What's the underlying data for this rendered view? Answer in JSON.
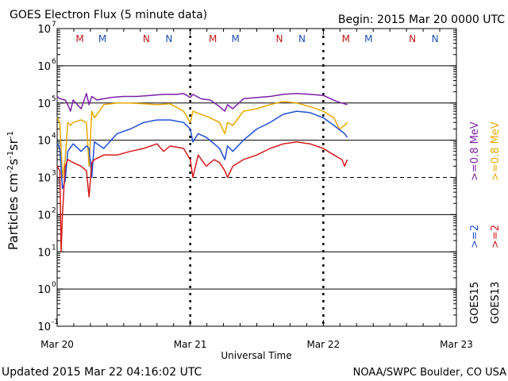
{
  "header": {
    "title": "GOES Electron Flux (5 minute data)",
    "begin": "Begin: 2015 Mar 20 0000 UTC"
  },
  "footer": {
    "updated": "Updated 2015 Mar 22 04:16:02 UTC",
    "credit": "NOAA/SWPC Boulder, CO USA"
  },
  "colors": {
    "goes15_08": "#7a1fa8",
    "goes13_08": "#e8a800",
    "goes15_2": "#1f4fd6",
    "goes13_2": "#d61a1a",
    "marker_M": "#c01818",
    "marker_M_blue": "#1f4fb0",
    "marker_N": "#c01818",
    "marker_N_blue": "#1f4fb0"
  },
  "chart_data": {
    "type": "line",
    "title": "GOES Electron Flux (5 minute data)",
    "xlabel": "Universal Time",
    "ylabel": "Particles cm⁻²s⁻¹sr⁻¹",
    "yscale": "log",
    "ylim": [
      0.1,
      10000000
    ],
    "xlim_days": [
      0,
      3
    ],
    "x_ticks": [
      {
        "day": 0,
        "label": "Mar 20"
      },
      {
        "day": 1,
        "label": "Mar 21"
      },
      {
        "day": 2,
        "label": "Mar 22"
      },
      {
        "day": 3,
        "label": "Mar 23"
      }
    ],
    "y_ticks": [
      {
        "exp": -1,
        "label": "10"
      },
      {
        "exp": 0,
        "label": "10"
      },
      {
        "exp": 1,
        "label": "10"
      },
      {
        "exp": 2,
        "label": "10"
      },
      {
        "exp": 3,
        "label": "10"
      },
      {
        "exp": 4,
        "label": "10"
      },
      {
        "exp": 5,
        "label": "10"
      },
      {
        "exp": 6,
        "label": "10"
      },
      {
        "exp": 7,
        "label": "10"
      }
    ],
    "threshold": 1000,
    "markers": [
      {
        "day": 0.17,
        "text": "M",
        "sat": "13"
      },
      {
        "day": 0.34,
        "text": "M",
        "sat": "15"
      },
      {
        "day": 0.67,
        "text": "N",
        "sat": "13"
      },
      {
        "day": 0.84,
        "text": "N",
        "sat": "15"
      },
      {
        "day": 1.17,
        "text": "M",
        "sat": "13"
      },
      {
        "day": 1.34,
        "text": "M",
        "sat": "15"
      },
      {
        "day": 1.67,
        "text": "N",
        "sat": "13"
      },
      {
        "day": 1.84,
        "text": "N",
        "sat": "15"
      },
      {
        "day": 2.17,
        "text": "M",
        "sat": "13"
      },
      {
        "day": 2.34,
        "text": "M",
        "sat": "15"
      },
      {
        "day": 2.67,
        "text": "N",
        "sat": "13"
      },
      {
        "day": 2.84,
        "text": "N",
        "sat": "15"
      }
    ],
    "legend": {
      "sat_labels": [
        "GOES15",
        "GOES13"
      ],
      "items": [
        {
          "text": ">=0.8  MeV",
          "color": "#7a1fa8"
        },
        {
          "text": ">=0.8  MeV",
          "color": "#e8a800"
        },
        {
          "text": ">=2",
          "color": "#1f4fd6"
        },
        {
          "text": ">=2",
          "color": "#d61a1a"
        }
      ]
    },
    "series": [
      {
        "name": "GOES15 >=0.8 MeV",
        "color": "#7a1fa8",
        "x": [
          0,
          0.02,
          0.06,
          0.08,
          0.1,
          0.12,
          0.18,
          0.22,
          0.24,
          0.26,
          0.3,
          0.4,
          0.5,
          0.6,
          0.7,
          0.8,
          0.9,
          0.95,
          1.0,
          1.02,
          1.08,
          1.15,
          1.22,
          1.26,
          1.28,
          1.32,
          1.4,
          1.5,
          1.6,
          1.7,
          1.8,
          1.9,
          2.0,
          2.1,
          2.18
        ],
        "y": [
          150000,
          130000,
          120000,
          90000,
          60000,
          120000,
          70000,
          180000,
          90000,
          150000,
          120000,
          140000,
          150000,
          150000,
          160000,
          170000,
          170000,
          180000,
          140000,
          170000,
          130000,
          120000,
          80000,
          60000,
          90000,
          70000,
          130000,
          140000,
          150000,
          170000,
          180000,
          170000,
          160000,
          110000,
          90000
        ]
      },
      {
        "name": "GOES13 >=0.8 MeV",
        "color": "#e8a800",
        "x": [
          0,
          0.02,
          0.04,
          0.06,
          0.08,
          0.1,
          0.12,
          0.18,
          0.22,
          0.24,
          0.26,
          0.28,
          0.35,
          0.45,
          0.55,
          0.65,
          0.75,
          0.85,
          0.95,
          1.0,
          1.02,
          1.08,
          1.15,
          1.22,
          1.26,
          1.28,
          1.32,
          1.4,
          1.5,
          1.6,
          1.7,
          1.8,
          1.9,
          2.0,
          2.08,
          2.12,
          2.16,
          2.18
        ],
        "y": [
          40000,
          30000,
          1000,
          3000,
          30000,
          25000,
          30000,
          35000,
          30000,
          2000,
          60000,
          40000,
          90000,
          100000,
          100000,
          95000,
          90000,
          95000,
          60000,
          30000,
          60000,
          50000,
          40000,
          30000,
          15000,
          30000,
          25000,
          60000,
          70000,
          90000,
          110000,
          100000,
          80000,
          60000,
          40000,
          20000,
          25000,
          30000
        ]
      },
      {
        "name": "GOES15 >=2 MeV",
        "color": "#1f4fd6",
        "x": [
          0,
          0.02,
          0.04,
          0.06,
          0.08,
          0.12,
          0.18,
          0.22,
          0.24,
          0.26,
          0.28,
          0.35,
          0.45,
          0.55,
          0.65,
          0.75,
          0.85,
          0.95,
          1.0,
          1.02,
          1.06,
          1.12,
          1.18,
          1.22,
          1.26,
          1.28,
          1.32,
          1.4,
          1.5,
          1.6,
          1.7,
          1.8,
          1.9,
          2.0,
          2.08,
          2.16,
          2.18
        ],
        "y": [
          8000,
          6000,
          500,
          800,
          5000,
          8000,
          5000,
          7000,
          6000,
          1000,
          9000,
          6000,
          15000,
          20000,
          30000,
          35000,
          35000,
          30000,
          20000,
          9000,
          15000,
          12000,
          8000,
          6000,
          3000,
          7000,
          5000,
          10000,
          20000,
          30000,
          50000,
          60000,
          55000,
          40000,
          25000,
          15000,
          12000
        ]
      },
      {
        "name": "GOES13 >=2 MeV",
        "color": "#d61a1a",
        "x": [
          0,
          0.02,
          0.03,
          0.04,
          0.06,
          0.08,
          0.12,
          0.18,
          0.22,
          0.24,
          0.26,
          0.28,
          0.35,
          0.45,
          0.55,
          0.65,
          0.75,
          0.8,
          0.85,
          0.95,
          1.0,
          1.02,
          1.06,
          1.12,
          1.18,
          1.22,
          1.26,
          1.28,
          1.32,
          1.4,
          1.5,
          1.6,
          1.7,
          1.8,
          1.9,
          2.0,
          2.08,
          2.14,
          2.16,
          2.18
        ],
        "y": [
          2000,
          1500,
          10,
          100,
          2000,
          3000,
          2500,
          2000,
          1500,
          300,
          2500,
          3000,
          4000,
          4000,
          5000,
          6000,
          8000,
          5000,
          7000,
          6000,
          3000,
          1000,
          4000,
          2000,
          3000,
          2500,
          1500,
          1000,
          2000,
          3000,
          4000,
          6000,
          8000,
          9000,
          8000,
          6000,
          4000,
          3000,
          2000,
          3000
        ]
      }
    ]
  }
}
